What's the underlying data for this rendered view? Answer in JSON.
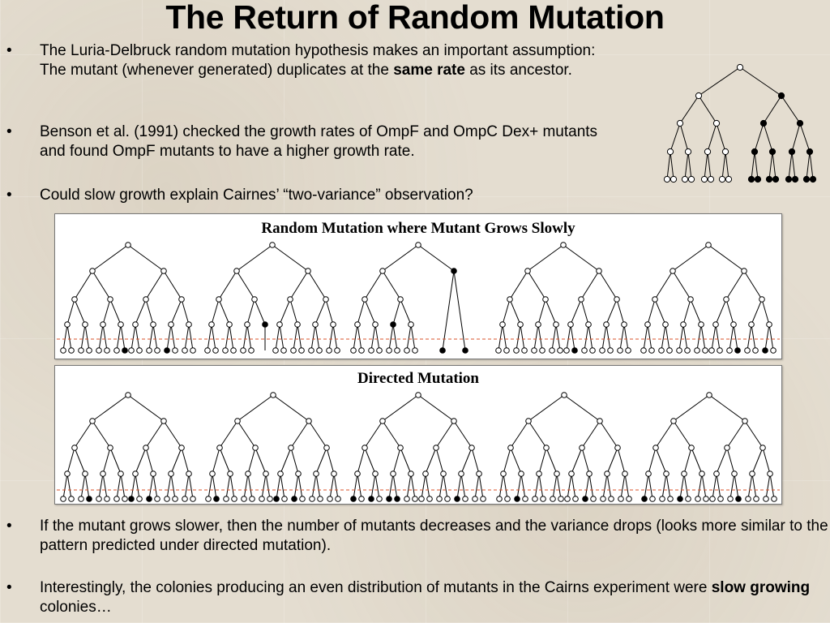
{
  "title": "The Return of Random Mutation",
  "bullets": {
    "b1": {
      "pre": "The Luria-Delbruck random mutation hypothesis makes an important assumption: The mutant (whenever generated) duplicates at the ",
      "bold": "same rate",
      "post": " as its ancestor."
    },
    "b2": {
      "pre": "Benson et al. (1991) checked the growth rates of OmpF and OmpC Dex+ mutants and found OmpF mutants to have a higher growth rate.",
      "bold": "",
      "post": ""
    },
    "b3": {
      "pre": "Could slow growth explain Cairnes’ “two-variance” observation?",
      "bold": "",
      "post": ""
    },
    "b4": {
      "pre": "If the mutant grows slower, then the number of mutants decreases and the variance drops (looks more similar to the pattern predicted under directed mutation).",
      "bold": "",
      "post": ""
    },
    "b5": {
      "pre": "Interestingly, the colonies producing an even distribution of mutants in the Cairns experiment were ",
      "bold": "slow growing",
      "post": " colonies…"
    }
  },
  "bullet_char": "•",
  "panels": {
    "random": {
      "title": "Random Mutation where Mutant Grows Slowly"
    },
    "directed": {
      "title": "Directed Mutation"
    }
  },
  "colors": {
    "dashed_line": "#d9532b",
    "node_stroke": "#000000"
  },
  "diagram": {
    "legend_tree": {
      "mutant_root": "1.1"
    },
    "random_trees": [
      {
        "mutant_nodes": [
          "4.7",
          "4.12"
        ]
      },
      {
        "mutant_nodes": [
          "3.3",
          "4.7"
        ],
        "mutant_stops_at_depth3": [
          "3.3"
        ]
      },
      {
        "mutant_nodes": [
          "3.2",
          "1.1"
        ],
        "pruned_slow": true
      },
      {
        "mutant_nodes": [
          "4.9"
        ]
      },
      {
        "mutant_nodes": [
          "4.11",
          "4.14"
        ]
      }
    ],
    "directed_trees": [
      {
        "mutant_nodes": [
          "4.3",
          "4.8",
          "4.10"
        ]
      },
      {
        "mutant_nodes": [
          "4.1",
          "4.8",
          "4.10"
        ]
      },
      {
        "mutant_nodes": [
          "4.0",
          "4.2",
          "4.4",
          "4.5",
          "4.12"
        ]
      },
      {
        "mutant_nodes": [
          "4.2",
          "4.10"
        ]
      },
      {
        "mutant_nodes": [
          "4.0",
          "4.4",
          "4.11"
        ]
      }
    ]
  }
}
